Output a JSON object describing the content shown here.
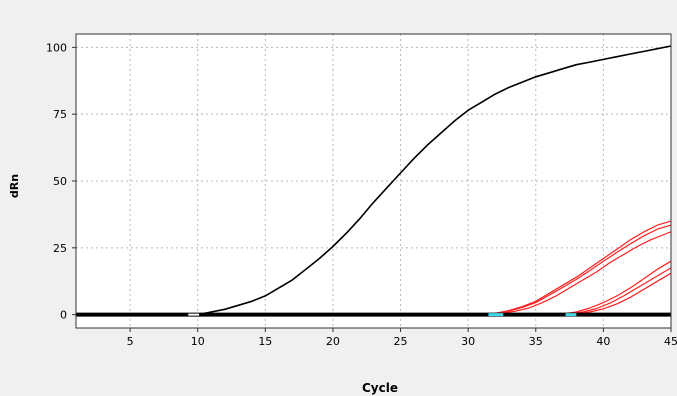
{
  "chart_data": {
    "type": "line",
    "title": "",
    "xlabel": "Cycle",
    "ylabel": "dRn",
    "xlim": [
      1,
      45
    ],
    "ylim": [
      -5,
      105
    ],
    "x_ticks": [
      5,
      10,
      15,
      20,
      25,
      30,
      35,
      40,
      45
    ],
    "y_ticks": [
      0,
      25,
      50,
      75,
      100
    ],
    "grid": true,
    "legend": "none",
    "colors": {
      "background": "#f0f0f0",
      "plot_background": "#ffffff",
      "grid": "#b8b8b8",
      "baseline": "#000000",
      "standard": "#000000",
      "samples": "#ff2020",
      "threshold_highlight": "#40d8e8"
    },
    "series": [
      {
        "color": "#000000",
        "points": [
          [
            1,
            0
          ],
          [
            9,
            0
          ],
          [
            10,
            0
          ],
          [
            11,
            1
          ],
          [
            12,
            2
          ],
          [
            13,
            3.5
          ],
          [
            14,
            5
          ],
          [
            15,
            7
          ],
          [
            16,
            10
          ],
          [
            17,
            13
          ],
          [
            18,
            17
          ],
          [
            19,
            21
          ],
          [
            20,
            25.5
          ],
          [
            21,
            30.5
          ],
          [
            22,
            36
          ],
          [
            23,
            42
          ],
          [
            24,
            47.5
          ],
          [
            25,
            53
          ],
          [
            26,
            58.5
          ],
          [
            27,
            63.5
          ],
          [
            28,
            68
          ],
          [
            29,
            72.5
          ],
          [
            30,
            76.5
          ],
          [
            31,
            79.5
          ],
          [
            32,
            82.5
          ],
          [
            33,
            85
          ],
          [
            34,
            87
          ],
          [
            35,
            89
          ],
          [
            36,
            90.5
          ],
          [
            37,
            92
          ],
          [
            38,
            93.5
          ],
          [
            39,
            94.5
          ],
          [
            40,
            95.5
          ],
          [
            41,
            96.5
          ],
          [
            42,
            97.5
          ],
          [
            43,
            98.5
          ],
          [
            44,
            99.5
          ],
          [
            45,
            100.5
          ]
        ]
      },
      {
        "color": "#ff2020",
        "points": [
          [
            31,
            0
          ],
          [
            32,
            0.5
          ],
          [
            33,
            1.5
          ],
          [
            34,
            3
          ],
          [
            35,
            5
          ],
          [
            36,
            8
          ],
          [
            37,
            11
          ],
          [
            38,
            14
          ],
          [
            39,
            17.5
          ],
          [
            40,
            21
          ],
          [
            41,
            24.5
          ],
          [
            42,
            28
          ],
          [
            43,
            31
          ],
          [
            44,
            33.5
          ],
          [
            45,
            35
          ]
        ]
      },
      {
        "color": "#ff2020",
        "points": [
          [
            31,
            0
          ],
          [
            32,
            0.5
          ],
          [
            33,
            1.3
          ],
          [
            34,
            2.7
          ],
          [
            35,
            4.5
          ],
          [
            36,
            7.3
          ],
          [
            37,
            10.2
          ],
          [
            38,
            13.2
          ],
          [
            39,
            16.5
          ],
          [
            40,
            20
          ],
          [
            41,
            23.3
          ],
          [
            42,
            26.5
          ],
          [
            43,
            29.5
          ],
          [
            44,
            32
          ],
          [
            45,
            33.5
          ]
        ]
      },
      {
        "color": "#ff2020",
        "points": [
          [
            31.5,
            0
          ],
          [
            32.5,
            0.5
          ],
          [
            33.5,
            1.3
          ],
          [
            34.5,
            2.5
          ],
          [
            35.5,
            4.5
          ],
          [
            36.5,
            7
          ],
          [
            37.5,
            10
          ],
          [
            38.5,
            13
          ],
          [
            39.5,
            16
          ],
          [
            40.5,
            19.5
          ],
          [
            41.5,
            22.5
          ],
          [
            42.5,
            25.5
          ],
          [
            43.5,
            28
          ],
          [
            44.5,
            30
          ],
          [
            45,
            31
          ]
        ]
      },
      {
        "color": "#ff2020",
        "points": [
          [
            36,
            0
          ],
          [
            37,
            0.3
          ],
          [
            38,
            1
          ],
          [
            39,
            2.5
          ],
          [
            40,
            4.5
          ],
          [
            41,
            7
          ],
          [
            42,
            10
          ],
          [
            43,
            13.5
          ],
          [
            44,
            17
          ],
          [
            45,
            20
          ]
        ]
      },
      {
        "color": "#ff2020",
        "points": [
          [
            36.5,
            0
          ],
          [
            37.5,
            0.3
          ],
          [
            38.5,
            1
          ],
          [
            39.5,
            2.3
          ],
          [
            40.5,
            4.3
          ],
          [
            41.5,
            7
          ],
          [
            42.5,
            10
          ],
          [
            43.5,
            13
          ],
          [
            44.5,
            16
          ],
          [
            45,
            17.5
          ]
        ]
      },
      {
        "color": "#ff2020",
        "points": [
          [
            37,
            0
          ],
          [
            38,
            0.3
          ],
          [
            39,
            1
          ],
          [
            40,
            2.2
          ],
          [
            41,
            4
          ],
          [
            42,
            6.5
          ],
          [
            43,
            9.5
          ],
          [
            44,
            12.5
          ],
          [
            45,
            15.5
          ]
        ]
      }
    ]
  }
}
